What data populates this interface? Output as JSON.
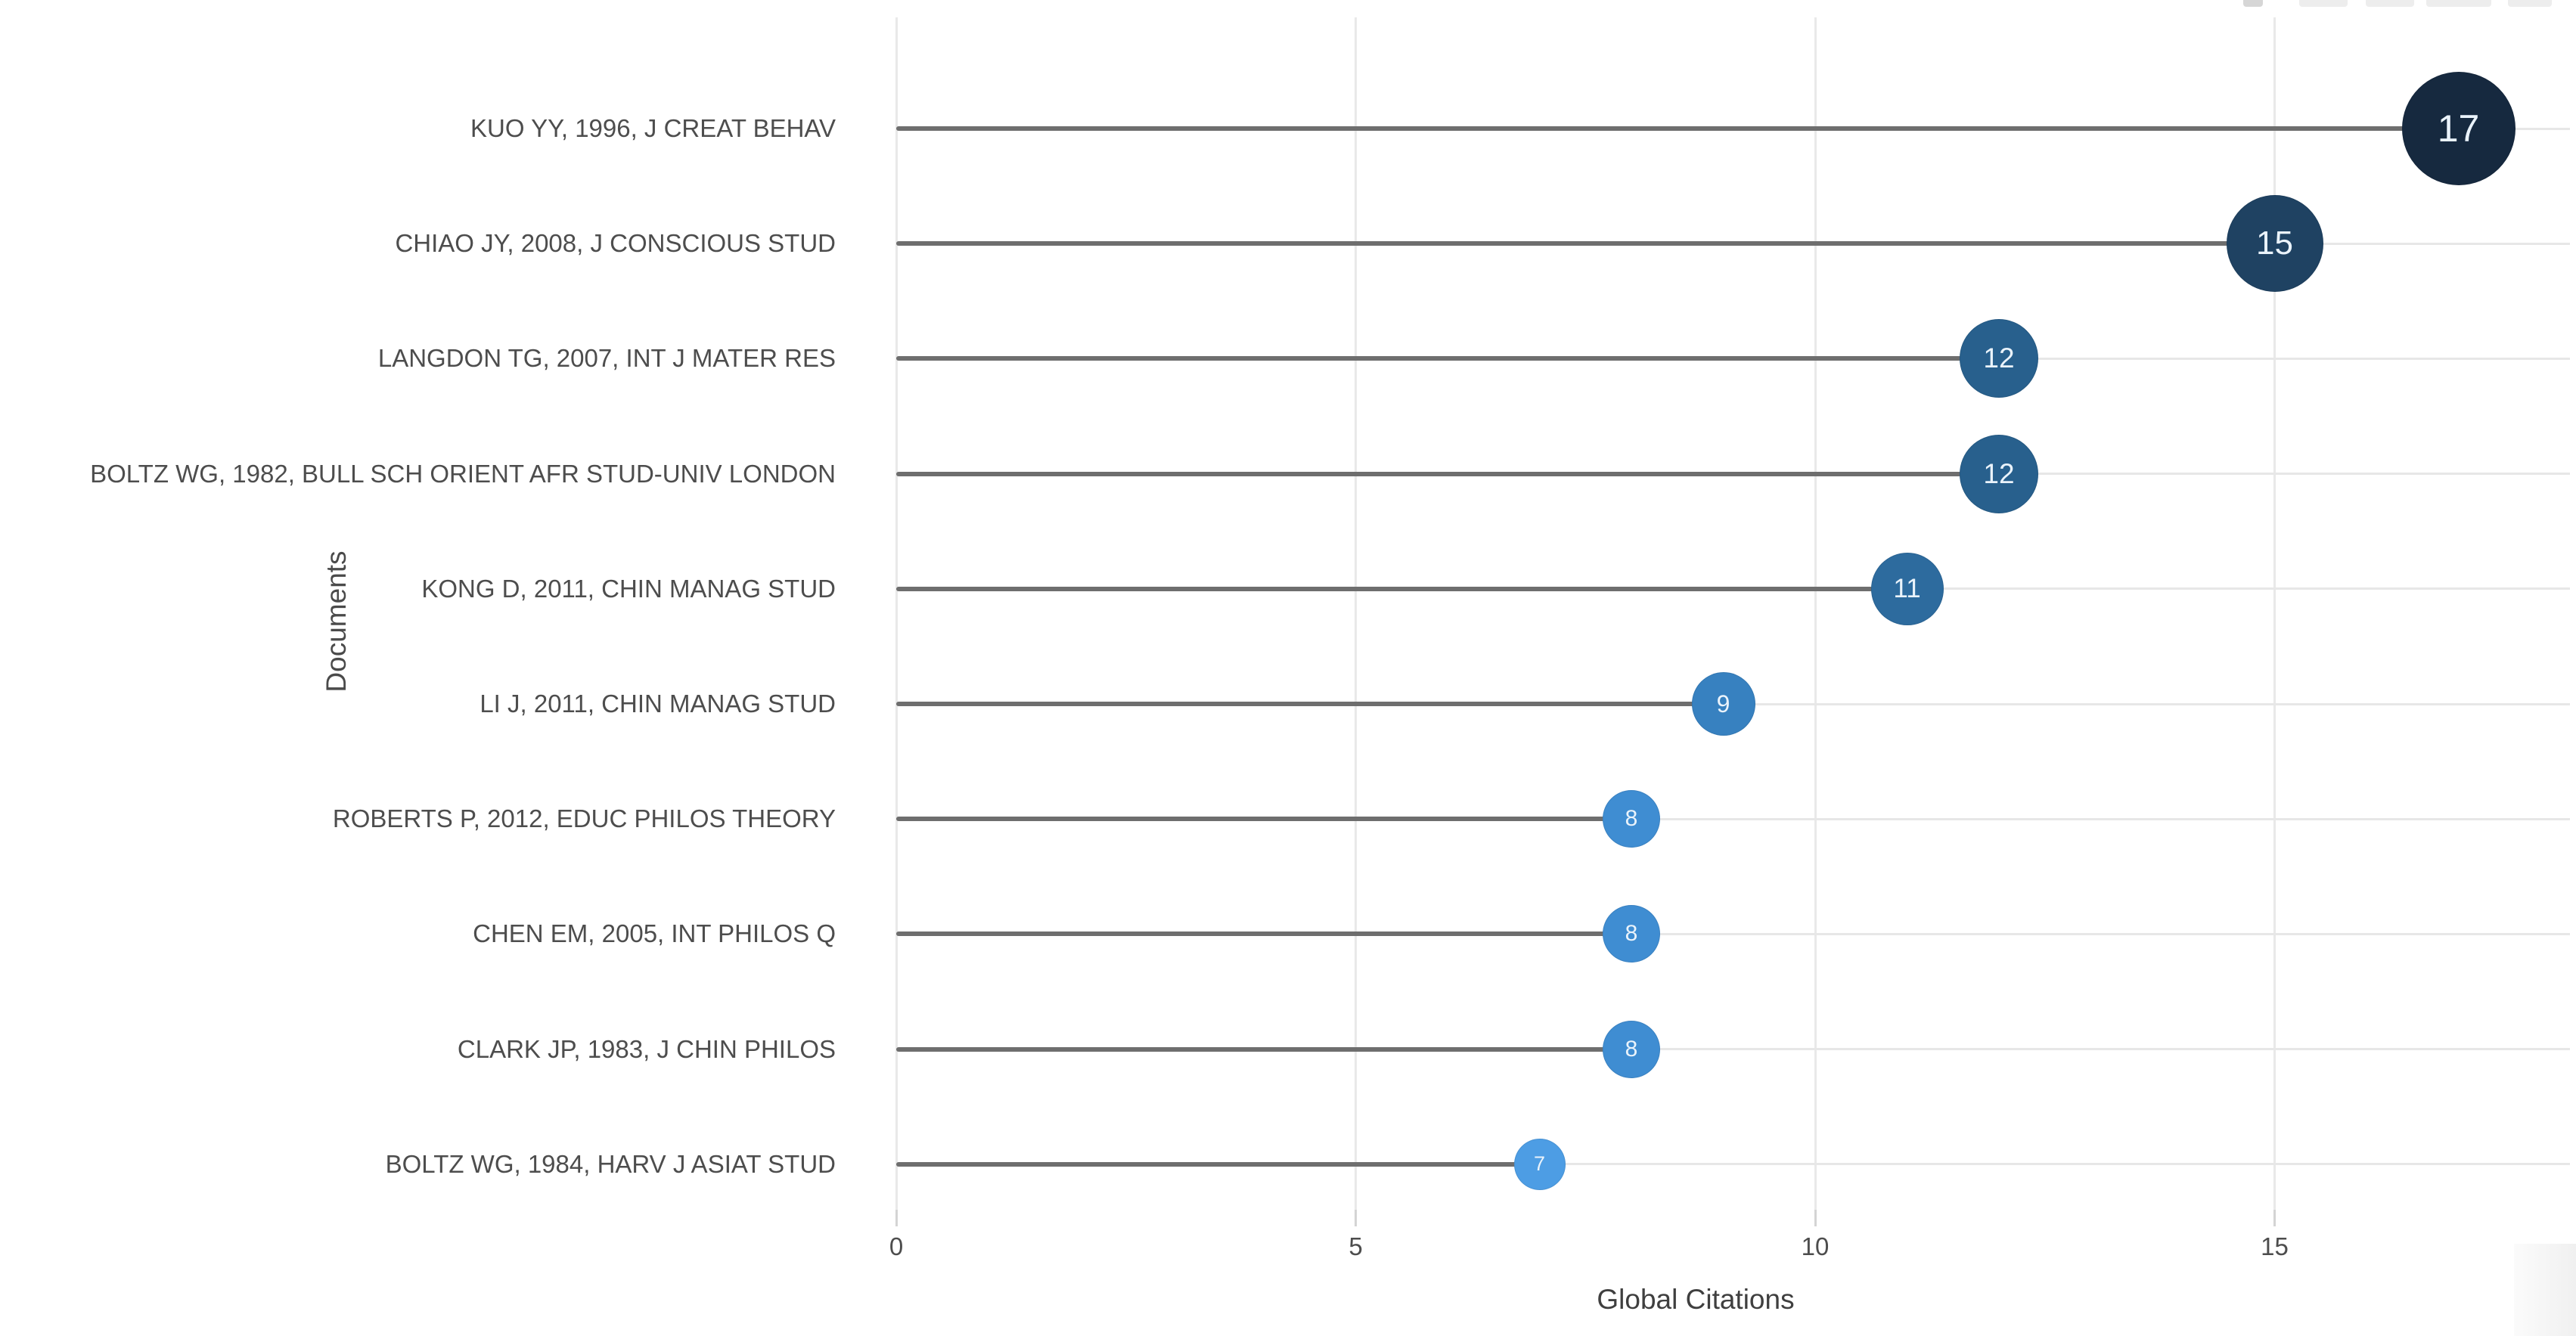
{
  "chart_data": {
    "type": "bar",
    "variant": "horizontal-lollipop",
    "title": "",
    "xlabel": "Global Citations",
    "ylabel": "Documents",
    "categories": [
      "KUO YY, 1996, J CREAT BEHAV",
      "CHIAO JY, 2008, J CONSCIOUS STUD",
      "LANGDON TG, 2007, INT J MATER RES",
      "BOLTZ WG, 1982, BULL SCH ORIENT AFR STUD-UNIV LONDON",
      "KONG D, 2011, CHIN MANAG STUD",
      "LI J, 2011, CHIN MANAG STUD",
      "ROBERTS P, 2012, EDUC PHILOS THEORY",
      "CHEN EM, 2005, INT PHILOS Q",
      "CLARK JP, 1983, J CHIN PHILOS",
      "BOLTZ WG, 1984, HARV J ASIAT STUD"
    ],
    "values": [
      17,
      15,
      12,
      12,
      11,
      9,
      8,
      8,
      8,
      7
    ],
    "point_colors": [
      "#16293f",
      "#1f4262",
      "#28608d",
      "#28608d",
      "#2d6b9e",
      "#3781c0",
      "#3f8dd2",
      "#3f8dd2",
      "#3f8dd2",
      "#4d9de4"
    ],
    "marker_sizes_px": [
      150,
      128,
      104,
      104,
      96,
      84,
      76,
      76,
      76,
      68
    ],
    "value_label_color": "#eaf3fb",
    "stem_color": "#6e6e6e",
    "grid_color": "#e7e7e7",
    "x_ticks": [
      0,
      5,
      10,
      15
    ],
    "xlim": [
      0,
      18.3
    ],
    "grid": "on",
    "legend": "none"
  },
  "axes": {
    "x_title": "Global Citations",
    "y_title": "Documents"
  }
}
